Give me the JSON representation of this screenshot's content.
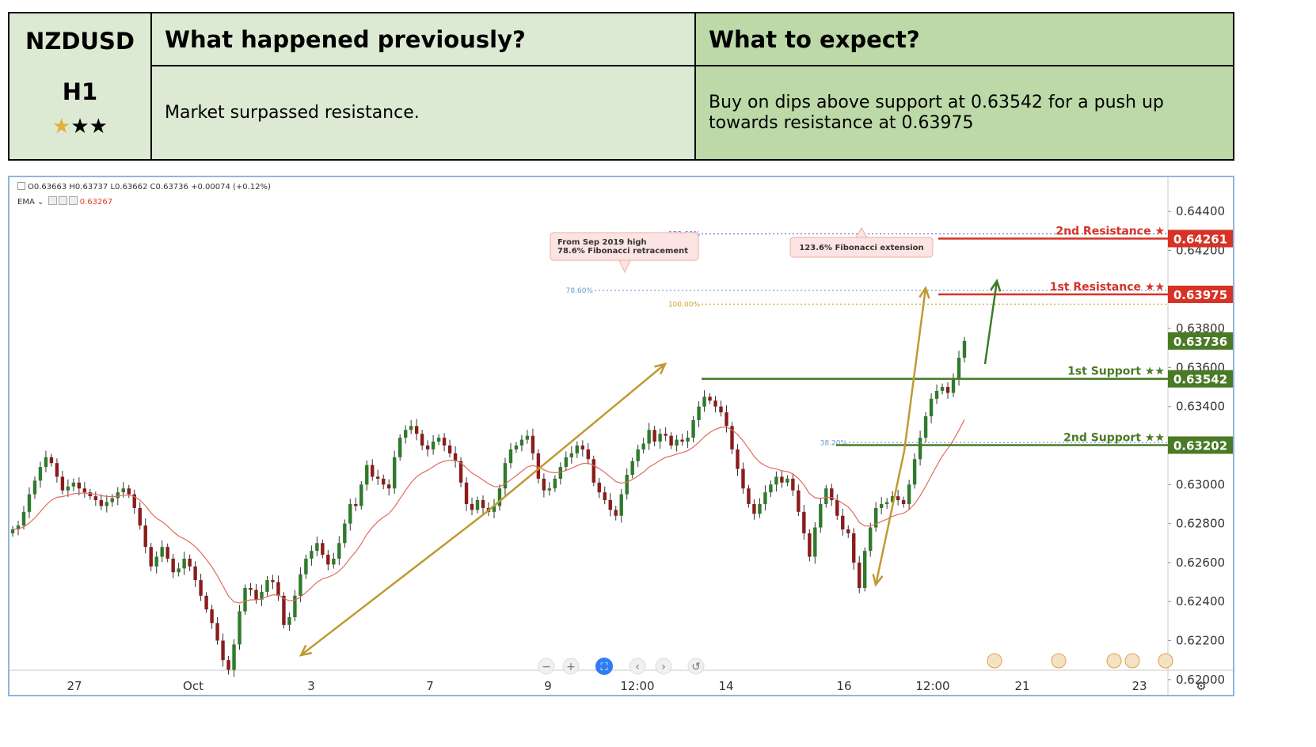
{
  "header": {
    "pair": "NZDUSD",
    "timeframe": "H1",
    "stars": [
      "★",
      "★",
      "★"
    ],
    "prev_title": "What happened previously?",
    "prev_text": "Market surpassed resistance.",
    "exp_title": "What to expect?",
    "exp_text": "Buy on dips above support at 0.63542 for a push up towards resistance at 0.63975"
  },
  "legend": {
    "ohlc": "O0.63663  H0.63737  L0.63662  C0.63736  +0.00074 (+0.12%)",
    "ema_label": "EMA ⌄",
    "ema_value": "0.63267"
  },
  "chart_data": {
    "type": "candlestick",
    "ylim": [
      0.62,
      0.6449
    ],
    "y_ticks": [
      "0.64400",
      "0.64200",
      "0.63800",
      "0.63600",
      "0.63400",
      "0.63000",
      "0.62800",
      "0.62600",
      "0.62400",
      "0.62200",
      "0.62000"
    ],
    "x_ticks": [
      "27",
      "Oct",
      "3",
      "7",
      "9",
      "12:00",
      "14",
      "16",
      "12:00",
      "21",
      "23"
    ],
    "levels": [
      {
        "name": "2nd Resistance ★",
        "value": 0.64261,
        "label": "0.64261",
        "color": "#d63226"
      },
      {
        "name": "1st Resistance ★★",
        "value": 0.63975,
        "label": "0.63975",
        "color": "#d63226"
      },
      {
        "name": "1st Support ★★",
        "value": 0.63542,
        "label": "0.63542",
        "color": "#4a7a26"
      },
      {
        "name": "2nd Support ★★",
        "value": 0.63202,
        "label": "0.63202",
        "color": "#4a7a26"
      }
    ],
    "last_price": {
      "value": 0.63736,
      "label": "0.63736"
    },
    "fib_levels": [
      {
        "label": "123.60%",
        "value": 0.64285,
        "color": "#6b6bc8"
      },
      {
        "label": "78.60%",
        "value": 0.63995,
        "color": "#6b9bd1"
      },
      {
        "label": "100.00%",
        "value": 0.63925,
        "color": "#d4a12a"
      },
      {
        "label": "38.20%",
        "value": 0.63215,
        "color": "#6b9bd1"
      }
    ],
    "annotations": [
      {
        "lines": [
          "From Sep 2019 high",
          "78.6% Fibonacci retracement"
        ]
      },
      {
        "lines": [
          "123.6% Fibonacci extension"
        ]
      }
    ],
    "series_close": [
      0.6277,
      0.6279,
      0.6286,
      0.6295,
      0.6302,
      0.6309,
      0.6314,
      0.6311,
      0.6304,
      0.6297,
      0.6299,
      0.6301,
      0.6298,
      0.6296,
      0.6294,
      0.6292,
      0.6289,
      0.6291,
      0.6293,
      0.6296,
      0.6298,
      0.6295,
      0.6288,
      0.6279,
      0.6268,
      0.6258,
      0.6263,
      0.6268,
      0.6262,
      0.6255,
      0.6257,
      0.6262,
      0.6258,
      0.6251,
      0.6243,
      0.6236,
      0.6229,
      0.622,
      0.621,
      0.6205,
      0.6218,
      0.6235,
      0.6247,
      0.6246,
      0.6241,
      0.6245,
      0.6251,
      0.625,
      0.6243,
      0.6228,
      0.6232,
      0.6243,
      0.6254,
      0.6262,
      0.6266,
      0.627,
      0.6264,
      0.6259,
      0.6262,
      0.627,
      0.628,
      0.629,
      0.6289,
      0.63,
      0.631,
      0.6304,
      0.6303,
      0.63,
      0.6298,
      0.6314,
      0.6324,
      0.6328,
      0.633,
      0.6326,
      0.632,
      0.6318,
      0.6322,
      0.6324,
      0.632,
      0.6316,
      0.6312,
      0.6301,
      0.629,
      0.6287,
      0.6292,
      0.6288,
      0.6286,
      0.6289,
      0.6298,
      0.6311,
      0.6318,
      0.632,
      0.6323,
      0.6325,
      0.6316,
      0.6303,
      0.6297,
      0.6298,
      0.6303,
      0.6309,
      0.6314,
      0.6316,
      0.632,
      0.6318,
      0.6313,
      0.6301,
      0.6296,
      0.6292,
      0.6287,
      0.6284,
      0.6295,
      0.6305,
      0.6312,
      0.6318,
      0.6321,
      0.6328,
      0.6322,
      0.6326,
      0.6325,
      0.632,
      0.6323,
      0.6322,
      0.6324,
      0.6333,
      0.634,
      0.6345,
      0.6343,
      0.634,
      0.6337,
      0.633,
      0.6318,
      0.6308,
      0.6298,
      0.629,
      0.6285,
      0.629,
      0.6296,
      0.63,
      0.6304,
      0.6301,
      0.6303,
      0.6297,
      0.6286,
      0.6275,
      0.6263,
      0.6278,
      0.629,
      0.6298,
      0.6292,
      0.6284,
      0.6277,
      0.6275,
      0.626,
      0.6247,
      0.6266,
      0.6278,
      0.6288,
      0.629,
      0.6291,
      0.6294,
      0.6292,
      0.629,
      0.63,
      0.6313,
      0.6324,
      0.6335,
      0.6344,
      0.6348,
      0.635,
      0.6347,
      0.6354,
      0.6365,
      0.63736
    ]
  }
}
